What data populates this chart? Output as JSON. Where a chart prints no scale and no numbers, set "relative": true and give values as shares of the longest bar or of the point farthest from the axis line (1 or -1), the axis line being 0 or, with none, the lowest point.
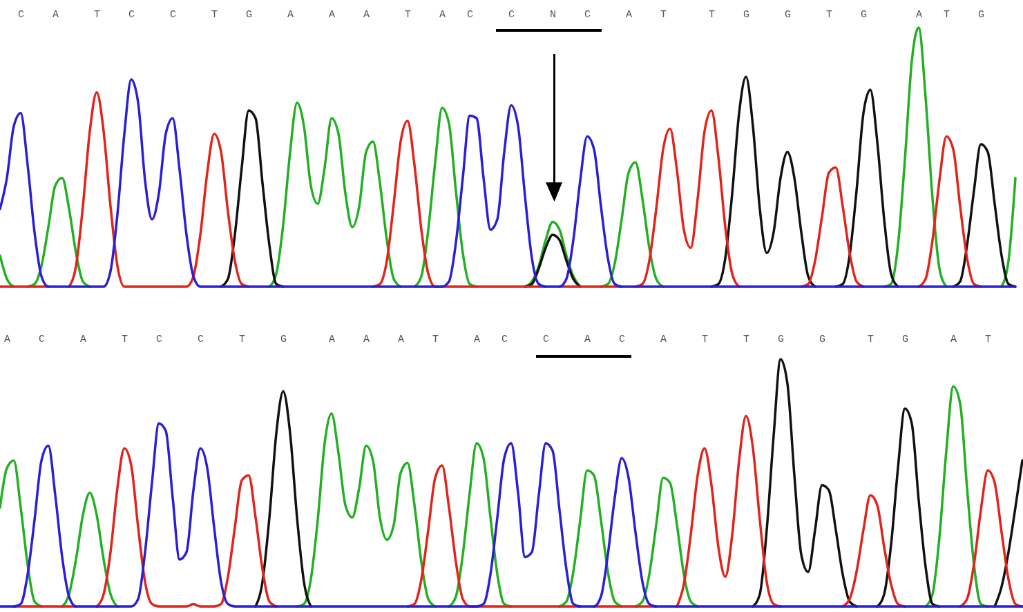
{
  "chart_data": [
    {
      "type": "line",
      "relative": true,
      "categories": [
        null,
        null,
        null,
        "C",
        null,
        null,
        null,
        null,
        "A",
        null,
        null,
        null,
        null,
        null,
        "T",
        null,
        null,
        null,
        null,
        "C",
        null,
        null,
        null,
        null,
        null,
        "C",
        null,
        null,
        null,
        null,
        null,
        "T",
        null,
        null,
        null,
        null,
        "G",
        null,
        null,
        null,
        null,
        null,
        "A",
        null,
        null,
        null,
        null,
        null,
        "A",
        null,
        null,
        null,
        null,
        "A",
        null,
        null,
        null,
        null,
        null,
        "T",
        null,
        null,
        null,
        null,
        "A",
        null,
        null,
        null,
        "C",
        null,
        null,
        null,
        null,
        null,
        "C",
        null,
        null,
        null,
        null,
        null,
        "N",
        null,
        null,
        null,
        null,
        "C",
        null,
        null,
        null,
        null,
        null,
        "A",
        null,
        null,
        null,
        null,
        "T",
        null,
        null,
        null,
        null,
        null,
        null,
        "T",
        null,
        null,
        null,
        null,
        "G",
        null,
        null,
        null,
        null,
        null,
        "G",
        null,
        null,
        null,
        null,
        null,
        "T",
        null,
        null,
        null,
        null,
        "G",
        null,
        null,
        null,
        null,
        null,
        null,
        null,
        "A",
        null,
        null,
        null,
        "T",
        null,
        null,
        null,
        null,
        "G",
        null,
        null,
        null,
        null,
        null
      ],
      "series": [
        {
          "color": "#22b022",
          "values": [
            0.12,
            0.03,
            0,
            null,
            0,
            0.01,
            0.08,
            0.23,
            0.39,
            0.42,
            0.3,
            0.13,
            0.02,
            0,
            null,
            null,
            null,
            null,
            null,
            null,
            null,
            null,
            null,
            null,
            null,
            null,
            null,
            null,
            null,
            null,
            null,
            null,
            null,
            null,
            null,
            null,
            null,
            null,
            null,
            0,
            0.05,
            0.24,
            0.52,
            0.71,
            0.62,
            0.39,
            0.32,
            0.46,
            0.65,
            0.59,
            0.36,
            0.23,
            0.31,
            0.52,
            0.56,
            0.4,
            0.18,
            0.03,
            0,
            null,
            0,
            0.04,
            0.22,
            0.48,
            0.69,
            0.63,
            0.37,
            0.13,
            0.01,
            0,
            null,
            null,
            null,
            null,
            null,
            null,
            0,
            0.02,
            0.08,
            0.18,
            0.25,
            0.22,
            0.12,
            0.04,
            0,
            null,
            null,
            0,
            0.01,
            0.09,
            0.26,
            0.44,
            0.48,
            0.34,
            0.15,
            0.03,
            0,
            null,
            null,
            null,
            null,
            null,
            null,
            null,
            null,
            null,
            null,
            null,
            null,
            null,
            null,
            null,
            null,
            null,
            null,
            null,
            null,
            null,
            null,
            null,
            null,
            null,
            null,
            null,
            null,
            null,
            null,
            null,
            0,
            0.01,
            0.16,
            0.49,
            0.87,
            1,
            0.73,
            0.34,
            0.07,
            0,
            null,
            null,
            null,
            null,
            null,
            null,
            null,
            0,
            0.1,
            0.42
          ]
        },
        {
          "color": "#111111",
          "values": [
            null,
            null,
            null,
            null,
            null,
            null,
            null,
            null,
            null,
            null,
            null,
            null,
            null,
            null,
            null,
            null,
            null,
            null,
            null,
            null,
            null,
            null,
            null,
            null,
            null,
            null,
            null,
            null,
            null,
            null,
            null,
            null,
            0,
            0.03,
            0.2,
            0.46,
            0.68,
            0.65,
            0.4,
            0.16,
            0.01,
            0,
            null,
            null,
            null,
            null,
            null,
            null,
            null,
            null,
            null,
            null,
            null,
            null,
            null,
            null,
            null,
            null,
            null,
            null,
            null,
            null,
            null,
            null,
            null,
            null,
            null,
            null,
            null,
            null,
            null,
            null,
            null,
            null,
            null,
            null,
            0,
            0.01,
            0.07,
            0.15,
            0.2,
            0.18,
            0.1,
            0.03,
            0,
            null,
            null,
            null,
            null,
            null,
            null,
            null,
            null,
            null,
            null,
            null,
            null,
            null,
            null,
            null,
            null,
            null,
            null,
            0,
            0.01,
            0.11,
            0.36,
            0.67,
            0.81,
            0.62,
            0.3,
            0.13,
            0.21,
            0.42,
            0.52,
            0.42,
            0.21,
            0.04,
            0,
            null,
            null,
            0,
            0.01,
            0.12,
            0.37,
            0.67,
            0.76,
            0.56,
            0.26,
            0.05,
            0,
            null,
            null,
            null,
            null,
            null,
            null,
            null,
            0,
            0.02,
            0.16,
            0.37,
            0.55,
            0.52,
            0.32,
            0.12,
            0.01,
            0
          ]
        },
        {
          "color": "#e2231a",
          "values": [
            0,
            0,
            0,
            0,
            0,
            0,
            0,
            0,
            null,
            null,
            0,
            0.08,
            0.31,
            0.6,
            0.75,
            0.6,
            0.31,
            0.08,
            0,
            0,
            0,
            0,
            0,
            0,
            0,
            0,
            0,
            0,
            0.04,
            0.2,
            0.44,
            0.59,
            0.52,
            0.29,
            0.1,
            0.01,
            0,
            null,
            null,
            null,
            null,
            null,
            null,
            null,
            null,
            null,
            null,
            null,
            null,
            null,
            null,
            null,
            null,
            null,
            0,
            0.01,
            0.1,
            0.32,
            0.56,
            0.64,
            0.47,
            0.22,
            0.05,
            0,
            0,
            0,
            0,
            0,
            0,
            0,
            0,
            0,
            0,
            0,
            0,
            0,
            0,
            0,
            0,
            0,
            null,
            0,
            0,
            0,
            0,
            0,
            0,
            0,
            0,
            0,
            0,
            null,
            0,
            0.01,
            0.1,
            0.3,
            0.53,
            0.61,
            0.45,
            0.22,
            0.15,
            0.34,
            0.6,
            0.68,
            0.5,
            0.23,
            0.05,
            0,
            null,
            null,
            null,
            null,
            null,
            null,
            null,
            null,
            0,
            0.01,
            0.1,
            0.27,
            0.44,
            0.46,
            0.31,
            0.13,
            0.02,
            0,
            null,
            null,
            null,
            null,
            null,
            null,
            null,
            0,
            0.03,
            0.18,
            0.41,
            0.58,
            0.53,
            0.31,
            0.11,
            0.01,
            0,
            null,
            null,
            null,
            null,
            null
          ]
        },
        {
          "color": "#2b1ed6",
          "values": [
            0.3,
            0.42,
            0.62,
            0.67,
            0.47,
            0.21,
            0.04,
            0,
            0,
            0,
            0,
            0,
            0,
            0,
            0,
            0,
            0.06,
            0.28,
            0.59,
            0.8,
            0.71,
            0.41,
            0.26,
            0.36,
            0.59,
            0.65,
            0.45,
            0.2,
            0.04,
            0,
            0,
            0,
            0,
            0,
            0,
            0,
            0,
            0,
            0,
            0,
            0,
            0,
            0,
            0,
            0,
            0,
            0,
            0,
            0,
            0,
            0,
            0,
            0,
            0,
            0,
            0,
            0,
            0,
            0,
            0,
            0,
            0,
            0,
            0,
            0,
            0.02,
            0.17,
            0.42,
            0.66,
            0.65,
            0.42,
            0.22,
            0.26,
            0.52,
            0.7,
            0.62,
            0.35,
            0.11,
            0.01,
            0,
            0,
            0,
            0.03,
            0.18,
            0.41,
            0.58,
            0.53,
            0.31,
            0.11,
            0.01,
            0,
            0,
            0,
            0,
            0,
            0,
            0,
            0,
            0,
            0,
            0,
            0,
            0,
            0,
            0,
            0,
            0,
            0,
            0,
            0,
            0,
            0,
            0,
            0,
            0,
            0,
            0,
            0,
            0,
            0,
            0,
            0,
            0,
            0,
            0,
            0,
            0,
            0,
            0,
            0,
            0,
            0,
            0,
            0,
            0,
            0,
            0,
            0,
            0,
            0,
            0,
            0,
            0,
            0,
            0,
            0,
            0,
            0
          ]
        }
      ]
    },
    {
      "type": "line",
      "relative": true,
      "categories": [
        null,
        "A",
        null,
        null,
        null,
        null,
        "C",
        null,
        null,
        null,
        null,
        null,
        "A",
        null,
        null,
        null,
        null,
        null,
        "T",
        null,
        null,
        null,
        null,
        "C",
        null,
        null,
        null,
        null,
        null,
        "C",
        null,
        null,
        null,
        null,
        null,
        "T",
        null,
        null,
        null,
        null,
        null,
        "G",
        null,
        null,
        null,
        null,
        null,
        null,
        "A",
        null,
        null,
        null,
        null,
        "A",
        null,
        null,
        null,
        null,
        "A",
        null,
        null,
        null,
        null,
        "T",
        null,
        null,
        null,
        null,
        null,
        "A",
        null,
        null,
        null,
        "C",
        null,
        null,
        null,
        null,
        null,
        "C",
        null,
        null,
        null,
        null,
        null,
        "A",
        null,
        null,
        null,
        null,
        "C",
        null,
        null,
        null,
        null,
        null,
        "A",
        null,
        null,
        null,
        null,
        null,
        "T",
        null,
        null,
        null,
        null,
        null,
        "T",
        null,
        null,
        null,
        null,
        "G",
        null,
        null,
        null,
        null,
        null,
        "G",
        null,
        null,
        null,
        null,
        null,
        null,
        "T",
        null,
        null,
        null,
        null,
        "G",
        null,
        null,
        null,
        null,
        null,
        null,
        "A",
        null,
        null,
        null,
        null,
        "T",
        null,
        null,
        null,
        null,
        null
      ],
      "series": [
        {
          "color": "#22b022",
          "values": [
            0.4,
            0.56,
            0.59,
            0.4,
            0.17,
            0.02,
            0,
            null,
            null,
            0,
            0.05,
            0.19,
            0.37,
            0.46,
            0.37,
            0.19,
            0.05,
            0,
            null,
            null,
            null,
            null,
            null,
            null,
            null,
            null,
            null,
            null,
            null,
            null,
            null,
            null,
            null,
            null,
            null,
            null,
            null,
            null,
            null,
            null,
            null,
            null,
            null,
            0,
            0.01,
            0.11,
            0.35,
            0.66,
            0.78,
            0.62,
            0.41,
            0.36,
            0.48,
            0.65,
            0.59,
            0.36,
            0.27,
            0.33,
            0.54,
            0.58,
            0.41,
            0.18,
            0.03,
            0,
            null,
            0,
            0.04,
            0.21,
            0.46,
            0.66,
            0.6,
            0.36,
            0.13,
            0.01,
            0,
            null,
            null,
            null,
            null,
            null,
            null,
            0,
            0.02,
            0.14,
            0.35,
            0.55,
            0.53,
            0.35,
            0.14,
            0.02,
            0,
            null,
            0,
            0.02,
            0.13,
            0.33,
            0.52,
            0.5,
            0.33,
            0.13,
            0.02,
            0,
            null,
            null,
            null,
            null,
            null,
            null,
            null,
            null,
            null,
            null,
            null,
            null,
            null,
            null,
            null,
            null,
            null,
            null,
            null,
            null,
            null,
            null,
            null,
            null,
            null,
            null,
            null,
            null,
            null,
            null,
            null,
            null,
            0,
            0.05,
            0.28,
            0.63,
            0.89,
            0.82,
            0.48,
            0.17,
            0.01,
            0,
            null,
            null,
            null,
            null,
            null
          ]
        },
        {
          "color": "#111111",
          "values": [
            null,
            null,
            null,
            null,
            null,
            null,
            null,
            null,
            null,
            null,
            null,
            null,
            null,
            null,
            null,
            null,
            null,
            null,
            null,
            null,
            null,
            null,
            null,
            null,
            null,
            null,
            null,
            null,
            null,
            null,
            null,
            null,
            null,
            null,
            null,
            null,
            null,
            0,
            0.1,
            0.36,
            0.7,
            0.87,
            0.7,
            0.36,
            0.1,
            0,
            null,
            null,
            null,
            null,
            null,
            null,
            null,
            null,
            null,
            null,
            null,
            null,
            null,
            null,
            null,
            null,
            null,
            null,
            null,
            null,
            null,
            null,
            null,
            null,
            null,
            null,
            null,
            null,
            null,
            null,
            null,
            null,
            null,
            null,
            null,
            null,
            null,
            null,
            null,
            null,
            null,
            null,
            null,
            null,
            null,
            null,
            null,
            null,
            null,
            null,
            null,
            null,
            null,
            null,
            null,
            null,
            null,
            null,
            null,
            null,
            null,
            null,
            null,
            0,
            0.05,
            0.31,
            0.69,
            1,
            0.9,
            0.53,
            0.21,
            0.14,
            0.31,
            0.49,
            0.47,
            0.31,
            0.13,
            0.02,
            0,
            null,
            null,
            0,
            0.05,
            0.25,
            0.56,
            0.8,
            0.74,
            0.43,
            0.16,
            0.01,
            0,
            null,
            null,
            null,
            null,
            null,
            null,
            null,
            0,
            0.08,
            0.22,
            0.4,
            0.59
          ]
        },
        {
          "color": "#e2231a",
          "values": [
            null,
            null,
            0,
            0,
            0,
            0,
            0,
            0,
            0,
            0,
            0,
            0,
            null,
            null,
            0,
            0.05,
            0.22,
            0.48,
            0.64,
            0.57,
            0.32,
            0.1,
            0.01,
            0,
            0,
            0,
            0,
            0,
            0.01,
            0,
            0,
            0,
            0.01,
            0.12,
            0.32,
            0.51,
            0.53,
            0.36,
            0.15,
            0.02,
            0,
            null,
            null,
            null,
            null,
            null,
            null,
            null,
            null,
            null,
            null,
            null,
            null,
            null,
            null,
            null,
            null,
            null,
            null,
            0,
            0.01,
            0.11,
            0.31,
            0.52,
            0.57,
            0.4,
            0.18,
            0.03,
            0,
            0,
            0,
            0,
            0,
            0,
            0,
            0,
            0,
            0,
            0,
            0,
            0,
            0,
            0,
            0,
            0,
            null,
            0,
            0,
            0,
            0,
            0,
            0,
            0,
            0,
            0,
            0,
            null,
            null,
            0,
            0.09,
            0.29,
            0.53,
            0.64,
            0.49,
            0.24,
            0.12,
            0.29,
            0.59,
            0.77,
            0.64,
            0.35,
            0.1,
            0.01,
            0,
            null,
            null,
            null,
            null,
            null,
            null,
            null,
            null,
            0,
            0.03,
            0.14,
            0.31,
            0.45,
            0.41,
            0.24,
            0.09,
            0.01,
            0,
            null,
            null,
            null,
            null,
            null,
            null,
            null,
            0,
            0.03,
            0.17,
            0.39,
            0.55,
            0.5,
            0.3,
            0.11,
            0.01,
            0
          ]
        },
        {
          "color": "#2b1ed6",
          "values": [
            0,
            0,
            0,
            0.01,
            0.13,
            0.35,
            0.59,
            0.65,
            0.45,
            0.2,
            0.04,
            0,
            0,
            0,
            0,
            0,
            0,
            0,
            0,
            0,
            0.03,
            0.22,
            0.5,
            0.74,
            0.71,
            0.44,
            0.19,
            0.22,
            0.47,
            0.64,
            0.56,
            0.32,
            0.1,
            0.01,
            0,
            0,
            0,
            0,
            0,
            0,
            0,
            0,
            0,
            0,
            0,
            0,
            0,
            0,
            0,
            0,
            0,
            0,
            0,
            0,
            0,
            0,
            0,
            0,
            0,
            0,
            0,
            0,
            0,
            0,
            0,
            0,
            0,
            0,
            0,
            0,
            0.01,
            0.13,
            0.36,
            0.6,
            0.66,
            0.46,
            0.2,
            0.22,
            0.45,
            0.66,
            0.63,
            0.39,
            0.15,
            0.01,
            0,
            0,
            0,
            0.04,
            0.21,
            0.44,
            0.6,
            0.52,
            0.3,
            0.1,
            0.01,
            0,
            0,
            0,
            0,
            0,
            0,
            0,
            0,
            0,
            0,
            0,
            0,
            0,
            0,
            0,
            0,
            0,
            0,
            0,
            0,
            0,
            0,
            0,
            0,
            0,
            0,
            0,
            0,
            0,
            0,
            0,
            0,
            0,
            0,
            0,
            0,
            0,
            0,
            0,
            0,
            0,
            0,
            0,
            0,
            0,
            0,
            0,
            0,
            0,
            0,
            0,
            0,
            0,
            0
          ]
        }
      ]
    }
  ]
}
